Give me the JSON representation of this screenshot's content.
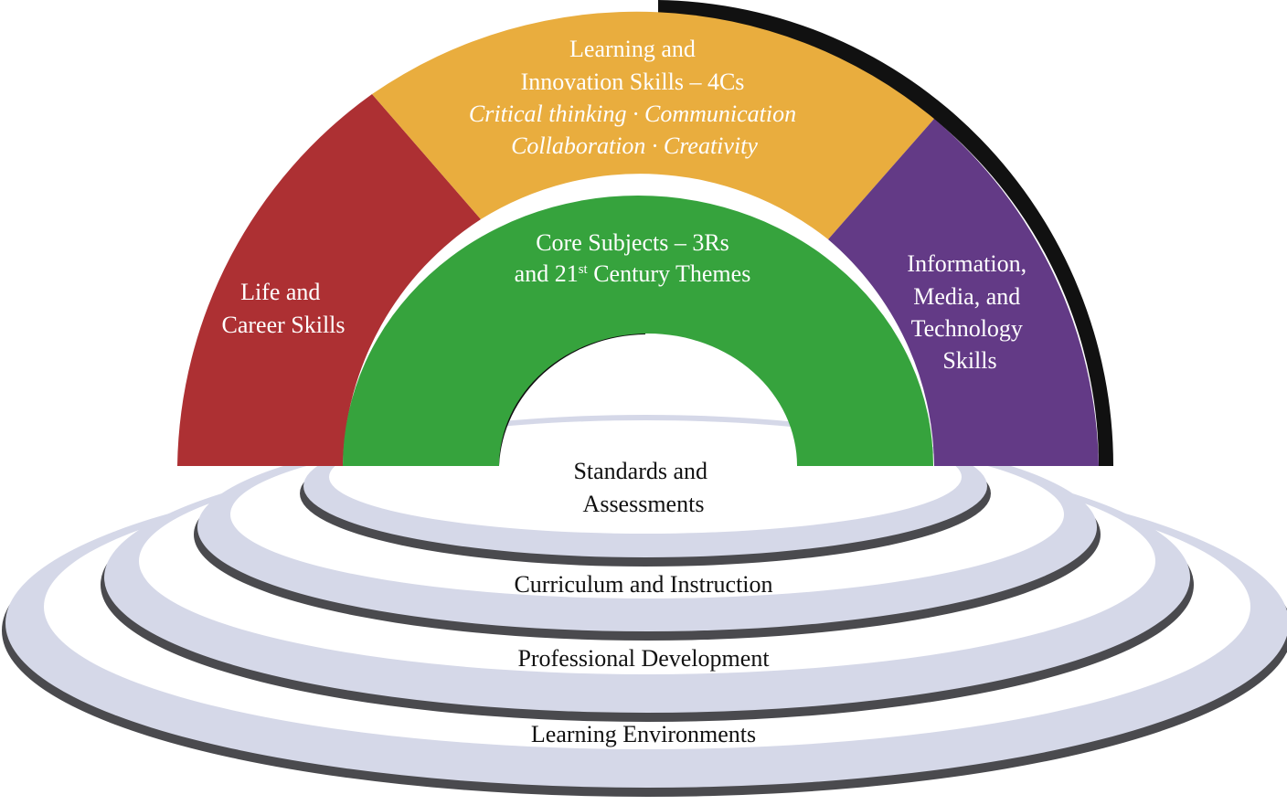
{
  "colors": {
    "life_career": "#ad3033",
    "learning_innovation": "#e9ad3e",
    "information_media": "#633a86",
    "core_subjects": "#36a33d",
    "rings_fill": "#d5d8e8",
    "rings_edge": "#4a4a4e",
    "shadow": "#111111"
  },
  "arch": {
    "life_career": {
      "line1": "Life and",
      "line2": "Career Skills"
    },
    "learning_innovation": {
      "line1": "Learning and",
      "line2": "Innovation Skills – 4Cs",
      "line3": "Critical thinking · Communication",
      "line4": "Collaboration · Creativity"
    },
    "information_media": {
      "line1": "Information,",
      "line2": "Media, and",
      "line3": "Technology",
      "line4": "Skills"
    },
    "core_subjects": {
      "line1": "Core Subjects – 3Rs",
      "line2_pre": "and 21",
      "line2_sup": "st",
      "line2_post": " Century Themes"
    }
  },
  "support_systems": {
    "standards_line1": "Standards and",
    "standards_line2": "Assessments",
    "curriculum": "Curriculum and Instruction",
    "professional": "Professional Development",
    "environments": "Learning Environments"
  }
}
